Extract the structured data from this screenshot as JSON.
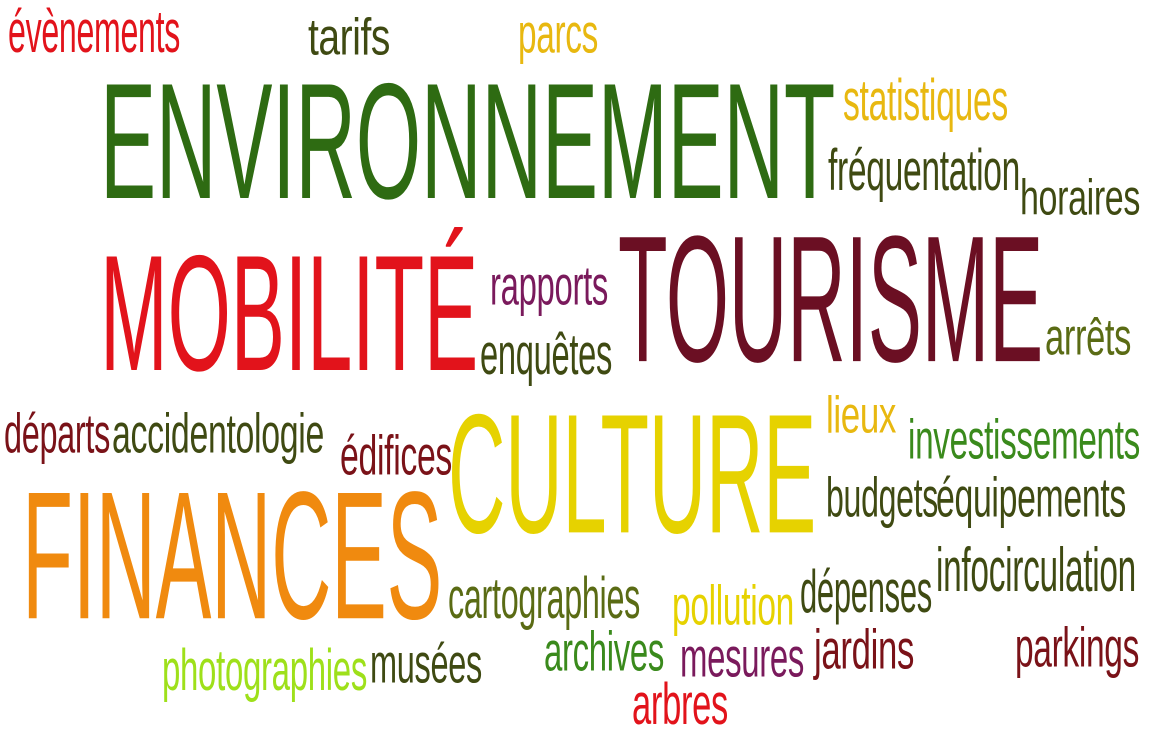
{
  "palette": {
    "red": "#e2131b",
    "green": "#2e6b12",
    "bright_green": "#3a8a1c",
    "olive": "#5a6b14",
    "dark_olive": "#3f4a12",
    "maroon": "#6b0f23",
    "dark_red": "#7a1218",
    "purple": "#7a1a5c",
    "orange": "#f08a0f",
    "yellow": "#e6d200",
    "gold": "#e8b810",
    "lime": "#9ee01a"
  },
  "words": [
    {
      "text": "ENVIRONNEMENT",
      "color": "green"
    },
    {
      "text": "MOBILITÉ",
      "color": "red"
    },
    {
      "text": "TOURISME",
      "color": "maroon"
    },
    {
      "text": "FINANCES",
      "color": "orange"
    },
    {
      "text": "CULTURE",
      "color": "yellow"
    },
    {
      "text": "évènements",
      "color": "red"
    },
    {
      "text": "tarifs",
      "color": "dark_olive"
    },
    {
      "text": "parcs",
      "color": "gold"
    },
    {
      "text": "statistiques",
      "color": "gold"
    },
    {
      "text": "fréquentation",
      "color": "dark_olive"
    },
    {
      "text": "horaires",
      "color": "dark_olive"
    },
    {
      "text": "rapports",
      "color": "purple"
    },
    {
      "text": "enquêtes",
      "color": "dark_olive"
    },
    {
      "text": "arrêts",
      "color": "olive"
    },
    {
      "text": "départs",
      "color": "dark_red"
    },
    {
      "text": "accidentologie",
      "color": "dark_olive"
    },
    {
      "text": "édifices",
      "color": "dark_red"
    },
    {
      "text": "lieux",
      "color": "gold"
    },
    {
      "text": "investissements",
      "color": "bright_green"
    },
    {
      "text": "budgets",
      "color": "dark_olive"
    },
    {
      "text": "équipements",
      "color": "dark_olive"
    },
    {
      "text": "infocirculation",
      "color": "dark_olive"
    },
    {
      "text": "dépenses",
      "color": "dark_olive"
    },
    {
      "text": "cartographies",
      "color": "olive"
    },
    {
      "text": "pollution",
      "color": "yellow"
    },
    {
      "text": "parkings",
      "color": "dark_red"
    },
    {
      "text": "photographies",
      "color": "lime"
    },
    {
      "text": "musées",
      "color": "dark_olive"
    },
    {
      "text": "archives",
      "color": "bright_green"
    },
    {
      "text": "mesures",
      "color": "purple"
    },
    {
      "text": "jardins",
      "color": "dark_red"
    },
    {
      "text": "arbres",
      "color": "red"
    }
  ]
}
